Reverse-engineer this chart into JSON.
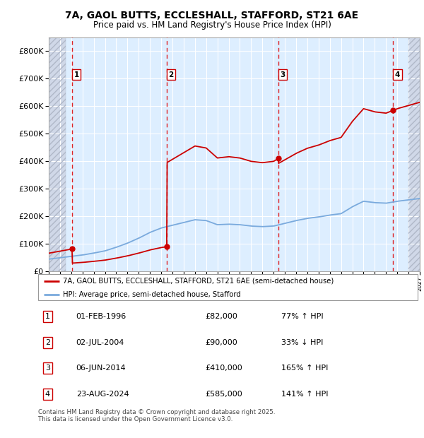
{
  "title_line1": "7A, GAOL BUTTS, ECCLESHALL, STAFFORD, ST21 6AE",
  "title_line2": "Price paid vs. HM Land Registry's House Price Index (HPI)",
  "ylim": [
    0,
    850000
  ],
  "yticks": [
    0,
    100000,
    200000,
    300000,
    400000,
    500000,
    600000,
    700000,
    800000
  ],
  "ytick_labels": [
    "£0",
    "£100K",
    "£200K",
    "£300K",
    "£400K",
    "£500K",
    "£600K",
    "£700K",
    "£800K"
  ],
  "xlim": [
    1994,
    2027
  ],
  "hatch_left_end": 1995.5,
  "hatch_right_start": 2026.0,
  "sale_dates": [
    1996.08,
    2004.5,
    2014.42,
    2024.64
  ],
  "sale_prices": [
    82000,
    90000,
    410000,
    585000
  ],
  "sale_labels": [
    "1",
    "2",
    "3",
    "4"
  ],
  "hpi_legend": "7A, GAOL BUTTS, ECCLESHALL, STAFFORD, ST21 6AE (semi-detached house)",
  "avg_legend": "HPI: Average price, semi-detached house, Stafford",
  "sale_color": "#cc0000",
  "hpi_color": "#7aaadd",
  "background_plot": "#ddeeff",
  "background_hatch_color": "#d0d8e8",
  "hatch_pattern": "////",
  "table_rows": [
    [
      "1",
      "01-FEB-1996",
      "£82,000",
      "77% ↑ HPI"
    ],
    [
      "2",
      "02-JUL-2004",
      "£90,000",
      "33% ↓ HPI"
    ],
    [
      "3",
      "06-JUN-2014",
      "£410,000",
      "165% ↑ HPI"
    ],
    [
      "4",
      "23-AUG-2024",
      "£585,000",
      "141% ↑ HPI"
    ]
  ],
  "footer": "Contains HM Land Registry data © Crown copyright and database right 2025.\nThis data is licensed under the Open Government Licence v3.0.",
  "hpi_data_years": [
    1994,
    1995,
    1996,
    1997,
    1998,
    1999,
    2000,
    2001,
    2002,
    2003,
    2004,
    2005,
    2006,
    2007,
    2008,
    2009,
    2010,
    2011,
    2012,
    2013,
    2014,
    2015,
    2016,
    2017,
    2018,
    2019,
    2020,
    2021,
    2022,
    2023,
    2024,
    2025,
    2026,
    2027
  ],
  "hpi_data_values": [
    45000,
    50000,
    55000,
    60000,
    67000,
    75000,
    88000,
    103000,
    121000,
    142000,
    158000,
    168000,
    178000,
    188000,
    185000,
    170000,
    172000,
    170000,
    165000,
    163000,
    165000,
    175000,
    185000,
    193000,
    198000,
    205000,
    210000,
    235000,
    255000,
    250000,
    248000,
    255000,
    260000,
    265000
  ]
}
